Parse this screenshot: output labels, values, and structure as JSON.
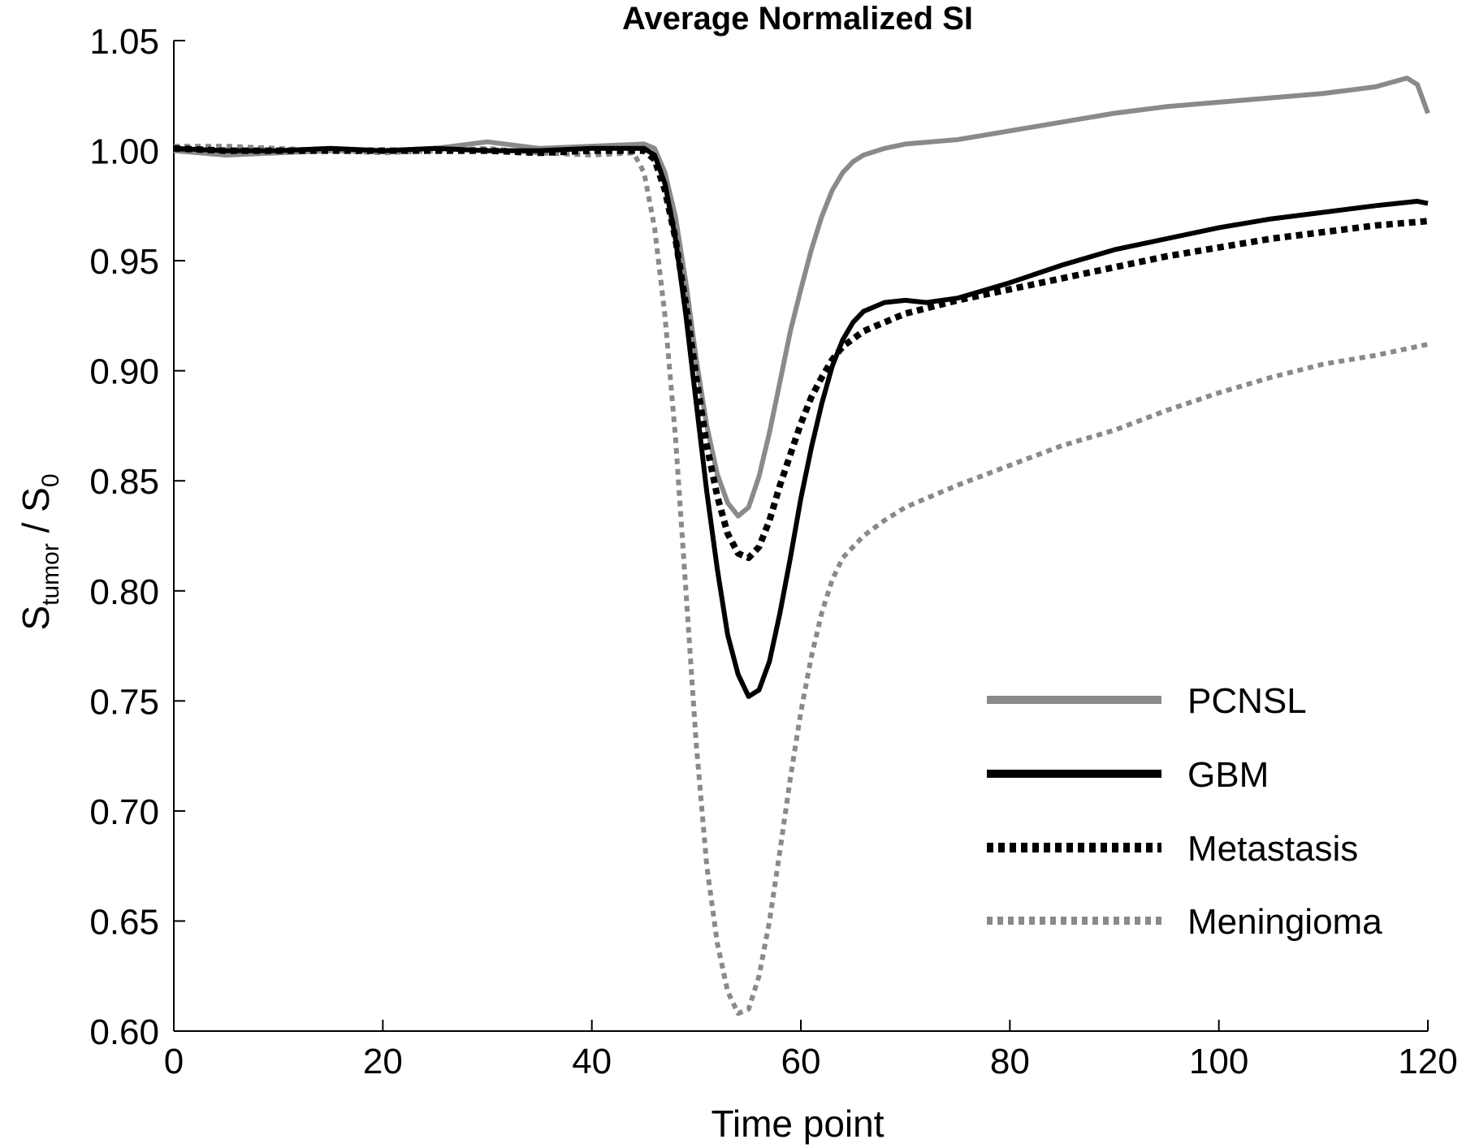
{
  "chart_data": {
    "type": "line",
    "title": "Average Normalized SI",
    "xlabel": "Time point",
    "ylabel": {
      "main": "S",
      "sub": "tumor",
      "sep": " / S",
      "sub2": "0"
    },
    "xlim": [
      0,
      120
    ],
    "ylim": [
      0.6,
      1.05
    ],
    "xticks": [
      "0",
      "20",
      "40",
      "60",
      "80",
      "100",
      "120"
    ],
    "yticks": [
      "0.60",
      "0.65",
      "0.70",
      "0.75",
      "0.80",
      "0.85",
      "0.90",
      "0.95",
      "1.00",
      "1.05"
    ],
    "grid": false,
    "legend_position": "bottom-right",
    "series": [
      {
        "name": "PCNSL",
        "color": "#8a8a8a",
        "style": "solid",
        "points": [
          [
            0,
            1.0
          ],
          [
            5,
            0.998
          ],
          [
            10,
            0.999
          ],
          [
            15,
            1.0
          ],
          [
            20,
            1.0
          ],
          [
            25,
            1.001
          ],
          [
            30,
            1.004
          ],
          [
            35,
            1.001
          ],
          [
            40,
            1.002
          ],
          [
            45,
            1.003
          ],
          [
            46,
            1.001
          ],
          [
            47,
            0.99
          ],
          [
            48,
            0.97
          ],
          [
            49,
            0.94
          ],
          [
            50,
            0.905
          ],
          [
            51,
            0.875
          ],
          [
            52,
            0.853
          ],
          [
            53,
            0.84
          ],
          [
            54,
            0.834
          ],
          [
            55,
            0.838
          ],
          [
            56,
            0.852
          ],
          [
            57,
            0.872
          ],
          [
            58,
            0.895
          ],
          [
            59,
            0.918
          ],
          [
            60,
            0.937
          ],
          [
            61,
            0.955
          ],
          [
            62,
            0.97
          ],
          [
            63,
            0.982
          ],
          [
            64,
            0.99
          ],
          [
            65,
            0.995
          ],
          [
            66,
            0.998
          ],
          [
            68,
            1.001
          ],
          [
            70,
            1.003
          ],
          [
            75,
            1.005
          ],
          [
            80,
            1.009
          ],
          [
            85,
            1.013
          ],
          [
            90,
            1.017
          ],
          [
            95,
            1.02
          ],
          [
            100,
            1.022
          ],
          [
            105,
            1.024
          ],
          [
            110,
            1.026
          ],
          [
            115,
            1.029
          ],
          [
            118,
            1.033
          ],
          [
            119,
            1.03
          ],
          [
            120,
            1.017
          ]
        ]
      },
      {
        "name": "GBM",
        "color": "#000000",
        "style": "solid",
        "points": [
          [
            0,
            1.001
          ],
          [
            5,
            1.0
          ],
          [
            10,
            1.0
          ],
          [
            15,
            1.001
          ],
          [
            20,
            1.0
          ],
          [
            25,
            1.001
          ],
          [
            30,
            1.0
          ],
          [
            35,
            1.0
          ],
          [
            40,
            1.001
          ],
          [
            45,
            1.001
          ],
          [
            46,
            0.998
          ],
          [
            47,
            0.985
          ],
          [
            48,
            0.96
          ],
          [
            49,
            0.925
          ],
          [
            50,
            0.885
          ],
          [
            51,
            0.845
          ],
          [
            52,
            0.81
          ],
          [
            53,
            0.78
          ],
          [
            54,
            0.762
          ],
          [
            55,
            0.752
          ],
          [
            56,
            0.755
          ],
          [
            57,
            0.768
          ],
          [
            58,
            0.79
          ],
          [
            59,
            0.815
          ],
          [
            60,
            0.842
          ],
          [
            61,
            0.865
          ],
          [
            62,
            0.885
          ],
          [
            63,
            0.902
          ],
          [
            64,
            0.914
          ],
          [
            65,
            0.922
          ],
          [
            66,
            0.927
          ],
          [
            68,
            0.931
          ],
          [
            70,
            0.932
          ],
          [
            72,
            0.931
          ],
          [
            75,
            0.933
          ],
          [
            80,
            0.94
          ],
          [
            85,
            0.948
          ],
          [
            90,
            0.955
          ],
          [
            95,
            0.96
          ],
          [
            100,
            0.965
          ],
          [
            105,
            0.969
          ],
          [
            110,
            0.972
          ],
          [
            115,
            0.975
          ],
          [
            119,
            0.977
          ],
          [
            120,
            0.976
          ]
        ]
      },
      {
        "name": "Metastasis",
        "color": "#000000",
        "style": "dotted-thick",
        "points": [
          [
            0,
            1.001
          ],
          [
            5,
            1.0
          ],
          [
            10,
            1.0
          ],
          [
            15,
            1.0
          ],
          [
            20,
            1.0
          ],
          [
            25,
            1.0
          ],
          [
            30,
            1.0
          ],
          [
            35,
            0.999
          ],
          [
            40,
            1.0
          ],
          [
            45,
            1.0
          ],
          [
            46,
            0.996
          ],
          [
            47,
            0.982
          ],
          [
            48,
            0.96
          ],
          [
            49,
            0.93
          ],
          [
            50,
            0.897
          ],
          [
            51,
            0.866
          ],
          [
            52,
            0.843
          ],
          [
            53,
            0.826
          ],
          [
            54,
            0.817
          ],
          [
            55,
            0.815
          ],
          [
            56,
            0.82
          ],
          [
            57,
            0.832
          ],
          [
            58,
            0.848
          ],
          [
            59,
            0.862
          ],
          [
            60,
            0.876
          ],
          [
            61,
            0.888
          ],
          [
            62,
            0.897
          ],
          [
            63,
            0.905
          ],
          [
            64,
            0.911
          ],
          [
            66,
            0.918
          ],
          [
            68,
            0.922
          ],
          [
            70,
            0.926
          ],
          [
            75,
            0.932
          ],
          [
            80,
            0.937
          ],
          [
            85,
            0.942
          ],
          [
            90,
            0.947
          ],
          [
            95,
            0.952
          ],
          [
            100,
            0.956
          ],
          [
            105,
            0.96
          ],
          [
            110,
            0.963
          ],
          [
            115,
            0.966
          ],
          [
            120,
            0.968
          ]
        ]
      },
      {
        "name": "Meningioma",
        "color": "#8a8a8a",
        "style": "dotted-thin",
        "points": [
          [
            0,
            1.002
          ],
          [
            5,
            1.002
          ],
          [
            10,
            1.001
          ],
          [
            15,
            1.0
          ],
          [
            20,
            0.999
          ],
          [
            25,
            1.0
          ],
          [
            30,
            1.001
          ],
          [
            35,
            0.999
          ],
          [
            40,
            0.998
          ],
          [
            44,
            0.999
          ],
          [
            45,
            0.99
          ],
          [
            46,
            0.965
          ],
          [
            47,
            0.925
          ],
          [
            48,
            0.87
          ],
          [
            49,
            0.8
          ],
          [
            50,
            0.73
          ],
          [
            51,
            0.675
          ],
          [
            52,
            0.64
          ],
          [
            53,
            0.618
          ],
          [
            54,
            0.608
          ],
          [
            55,
            0.61
          ],
          [
            56,
            0.625
          ],
          [
            57,
            0.65
          ],
          [
            58,
            0.682
          ],
          [
            59,
            0.715
          ],
          [
            60,
            0.745
          ],
          [
            61,
            0.77
          ],
          [
            62,
            0.79
          ],
          [
            63,
            0.805
          ],
          [
            64,
            0.815
          ],
          [
            66,
            0.825
          ],
          [
            68,
            0.832
          ],
          [
            70,
            0.838
          ],
          [
            72,
            0.842
          ],
          [
            75,
            0.848
          ],
          [
            80,
            0.857
          ],
          [
            85,
            0.866
          ],
          [
            90,
            0.873
          ],
          [
            95,
            0.882
          ],
          [
            100,
            0.89
          ],
          [
            105,
            0.897
          ],
          [
            110,
            0.903
          ],
          [
            115,
            0.907
          ],
          [
            120,
            0.912
          ]
        ]
      }
    ]
  }
}
